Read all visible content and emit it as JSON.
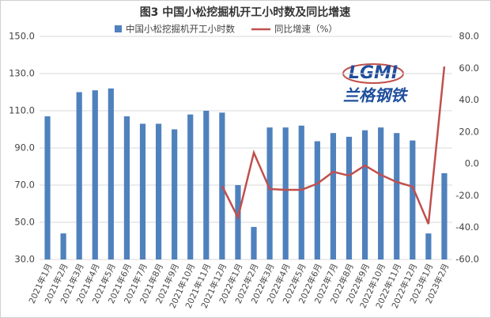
{
  "chart_data": {
    "type": "bar_line",
    "title": "图3 中国小松挖掘机开工小时数及同比增速",
    "categories": [
      "2021年1月",
      "2021年2月",
      "2021年3月",
      "2021年4月",
      "2021年5月",
      "2021年6月",
      "2021年7月",
      "2021年8月",
      "2021年9月",
      "2021年10月",
      "2021年11月",
      "2021年12月",
      "2022年1月",
      "2022年2月",
      "2022年3月",
      "2022年4月",
      "2022年5月",
      "2022年6月",
      "2022年7月",
      "2022年8月",
      "2022年9月",
      "2022年10月",
      "2022年11月",
      "2022年12月",
      "2023年1月",
      "2023年2月"
    ],
    "series": [
      {
        "name": "中国小松挖掘机开工小时数",
        "type": "bar",
        "color": "#4f81bd",
        "values": [
          107,
          44,
          120,
          121,
          122,
          107,
          103,
          103,
          100,
          108,
          110,
          109,
          70,
          47.5,
          101,
          101,
          102,
          93.6,
          98,
          96,
          99.5,
          101,
          98,
          94,
          44,
          76.4
        ]
      },
      {
        "name": "同比增速（%）",
        "type": "line",
        "axis": "y2",
        "color": "#c0504d",
        "values": [
          null,
          null,
          null,
          null,
          null,
          null,
          null,
          null,
          null,
          null,
          null,
          -13.8,
          -33.7,
          7,
          -15.8,
          -16.3,
          -16.3,
          -12.4,
          -5,
          -7.4,
          -1,
          -6.9,
          -11.4,
          -14.3,
          -37.7,
          61.1
        ]
      }
    ],
    "ylim": [
      30,
      150
    ],
    "yticks": [
      {
        "value": 30,
        "label": "30.0"
      },
      {
        "value": 50,
        "label": "50.0"
      },
      {
        "value": 70,
        "label": "70.0"
      },
      {
        "value": 90,
        "label": "90.0"
      },
      {
        "value": 110,
        "label": "110.0"
      },
      {
        "value": 130,
        "label": "130.0"
      },
      {
        "value": 150,
        "label": "150.0"
      }
    ],
    "y2lim": [
      -60,
      80
    ],
    "y2ticks": [
      {
        "value": -60,
        "label": "-60.0"
      },
      {
        "value": -40,
        "label": "-40.0"
      },
      {
        "value": -20,
        "label": "-20.0"
      },
      {
        "value": 0,
        "label": "0.0"
      },
      {
        "value": 20,
        "label": "20.0"
      },
      {
        "value": 40,
        "label": "40.0"
      },
      {
        "value": 60,
        "label": "60.0"
      },
      {
        "value": 80,
        "label": "80.0"
      }
    ],
    "grid": true,
    "legend": "top"
  },
  "logo": {
    "mark": "LGMI",
    "name": "兰格钢铁"
  }
}
